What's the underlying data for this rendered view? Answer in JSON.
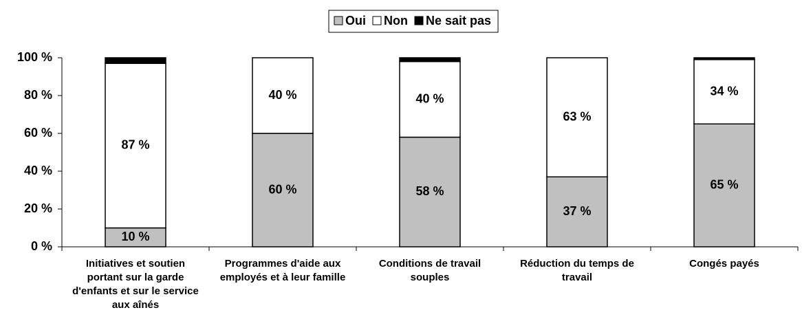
{
  "chart_data": {
    "type": "stacked_bar",
    "categories": [
      "Initiatives et soutien portant sur la garde d'enfants et sur le service aux aînés",
      "Programmes d'aide aux employés et à leur famille",
      "Conditions de travail souples",
      "Réduction du temps de travail",
      "Congés payés"
    ],
    "series": [
      {
        "name": "Oui",
        "color": "#c0c0c0",
        "values": [
          10,
          60,
          58,
          37,
          65
        ],
        "value_labels": [
          "10 %",
          "60 %",
          "58 %",
          "37 %",
          "65 %"
        ]
      },
      {
        "name": "Non",
        "color": "#ffffff",
        "values": [
          87,
          40,
          40,
          63,
          34
        ],
        "value_labels": [
          "87 %",
          "40 %",
          "40 %",
          "63 %",
          "34 %"
        ]
      },
      {
        "name": "Ne sait pas",
        "color": "#000000",
        "values": [
          3,
          0,
          2,
          0,
          1
        ]
      }
    ],
    "ylim": [
      0,
      100
    ],
    "yticks": [
      {
        "value": 0,
        "label": "0 %"
      },
      {
        "value": 20,
        "label": "20 %"
      },
      {
        "value": 40,
        "label": "40 %"
      },
      {
        "value": 60,
        "label": "60 %"
      },
      {
        "value": 80,
        "label": "80 %"
      },
      {
        "value": 100,
        "label": "100 %"
      }
    ],
    "legend": "top"
  }
}
